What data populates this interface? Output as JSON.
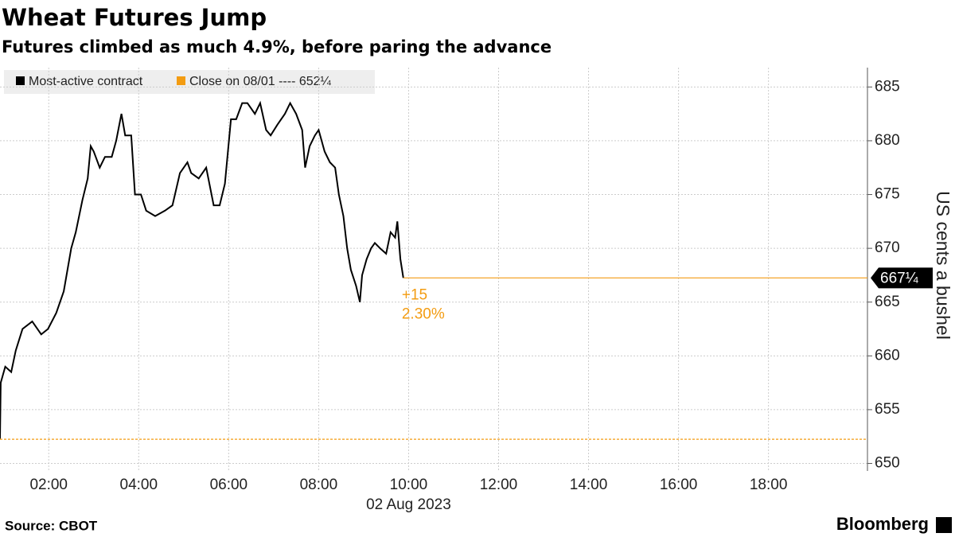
{
  "chart_data": {
    "type": "line",
    "title": "Wheat Futures Jump",
    "subtitle": "Futures climbed as much 4.9%, before paring the advance",
    "source": "Source: CBOT",
    "brand": "Bloomberg",
    "ylabel": "US cents a bushel",
    "xlabel": "02 Aug 2023",
    "x": [
      "00:55",
      "00:56",
      "01:02",
      "01:10",
      "01:16",
      "01:25",
      "01:38",
      "01:50",
      "01:59",
      "02:10",
      "02:20",
      "02:30",
      "02:36",
      "02:45",
      "02:52",
      "02:56",
      "03:00",
      "03:08",
      "03:15",
      "03:24",
      "03:30",
      "03:37",
      "03:42",
      "03:50",
      "03:55",
      "04:03",
      "04:10",
      "04:22",
      "04:35",
      "04:45",
      "04:55",
      "05:05",
      "05:10",
      "05:20",
      "05:30",
      "05:40",
      "05:48",
      "05:55",
      "06:03",
      "06:10",
      "06:18",
      "06:25",
      "06:35",
      "06:42",
      "06:50",
      "06:56",
      "07:05",
      "07:15",
      "07:22",
      "07:30",
      "07:38",
      "07:42",
      "07:48",
      "07:55",
      "08:00",
      "08:08",
      "08:15",
      "08:22",
      "08:27",
      "08:33",
      "08:38",
      "08:43",
      "08:50",
      "08:55",
      "08:58",
      "09:04",
      "09:10",
      "09:15",
      "09:22",
      "09:30",
      "09:36",
      "09:42",
      "09:45",
      "09:49",
      "09:53"
    ],
    "series": [
      {
        "name": "Most-active contract",
        "color": "#000000",
        "values": [
          652.3,
          657.5,
          659,
          658.5,
          660.5,
          662.5,
          663.2,
          662,
          662.5,
          664,
          666,
          670,
          671.5,
          674.5,
          676.5,
          679.5,
          679,
          677.5,
          678.5,
          678.5,
          680,
          682.5,
          680.5,
          680.5,
          675,
          675,
          673.5,
          673,
          673.5,
          674,
          677,
          678,
          677,
          676.5,
          677.5,
          674,
          674,
          676,
          682,
          682,
          683.5,
          683.5,
          682.5,
          683.5,
          681,
          680.5,
          681.5,
          682.5,
          683.5,
          682.5,
          681,
          677.5,
          679.5,
          680.5,
          681,
          679,
          678,
          677.5,
          675,
          673,
          670,
          668,
          666.5,
          665,
          667.5,
          669,
          670,
          670.5,
          670,
          669.5,
          671.5,
          671,
          672.5,
          669,
          667.25
        ]
      }
    ],
    "reference": {
      "name": "Close on 08/01 ---- 652¼",
      "value": 652.25,
      "color": "#f39c12"
    },
    "current": {
      "value": 667.25,
      "label": "667¼",
      "change": "+15",
      "change_pct": "2.30%"
    },
    "xlim": [
      "00:55",
      "20:12"
    ],
    "xticks": [
      "02:00",
      "04:00",
      "06:00",
      "08:00",
      "10:00",
      "12:00",
      "14:00",
      "16:00",
      "18:00"
    ],
    "ylim": [
      649.3,
      686.8
    ],
    "yticks": [
      650,
      655,
      660,
      665,
      670,
      675,
      680,
      685
    ],
    "grid": true
  }
}
